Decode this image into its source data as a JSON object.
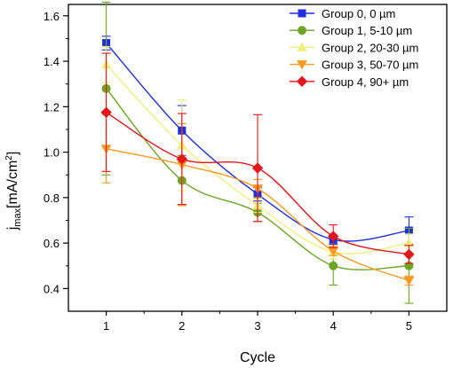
{
  "chart_data": {
    "type": "line",
    "xlabel": "Cycle",
    "ylabel_main": "j",
    "ylabel_sub": "max",
    "ylabel_unit": "[mA/cm",
    "ylabel_unit_sup": "2",
    "ylabel_unit_end": "]",
    "xlim": [
      0.5,
      5.5
    ],
    "ylim": [
      0.3,
      1.65
    ],
    "x_ticks": [
      "1",
      "2",
      "3",
      "4",
      "5"
    ],
    "y_ticks": [
      "0.4",
      "0.6",
      "0.8",
      "1.0",
      "1.2",
      "1.4",
      "1.6"
    ],
    "grid": false,
    "legend_position": "top-right",
    "x": [
      1,
      2,
      3,
      4,
      5
    ],
    "series": [
      {
        "name": "Group 0, 0 µm",
        "color": "#1f2fdf",
        "marker": "square",
        "values": [
          1.48,
          1.095,
          0.815,
          0.615,
          0.655
        ],
        "errors": [
          0.03,
          0.11,
          0.03,
          0.02,
          0.06
        ]
      },
      {
        "name": "Group 1, 5-10 µm",
        "color": "#6da425",
        "marker": "circle",
        "values": [
          1.28,
          0.875,
          0.735,
          0.5,
          0.5
        ],
        "errors": [
          0.38,
          0.11,
          0.04,
          0.085,
          0.165
        ]
      },
      {
        "name": "Group 2, 20-30 µm",
        "color": "#f2ed7f",
        "marker": "triangle-up",
        "values": [
          1.385,
          1.03,
          0.765,
          0.56,
          0.6
        ],
        "errors": [
          0.08,
          0.2,
          0.03,
          0.03,
          0.04
        ]
      },
      {
        "name": "Group 3, 50-70 µm",
        "color": "#f99a22",
        "marker": "triangle-down",
        "values": [
          1.015,
          0.945,
          0.84,
          0.565,
          0.435
        ],
        "errors": [
          0.15,
          0.18,
          0.04,
          0.02,
          0.02
        ]
      },
      {
        "name": "Group 4, 90+ µm",
        "color": "#e4161c",
        "marker": "diamond",
        "values": [
          1.175,
          0.97,
          0.93,
          0.63,
          0.55
        ],
        "errors": [
          0.26,
          0.2,
          0.235,
          0.05,
          0.04
        ]
      }
    ]
  }
}
